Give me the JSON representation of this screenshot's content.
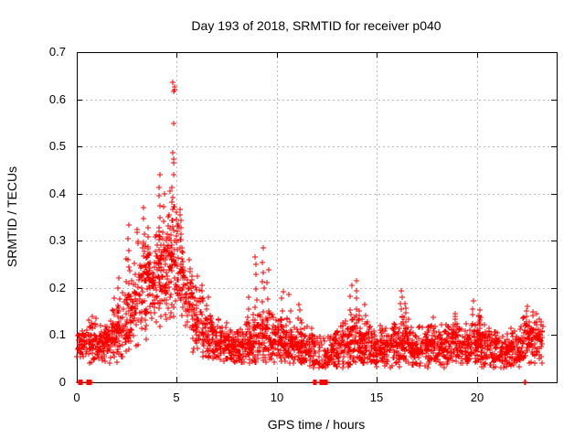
{
  "chart_data": {
    "type": "scatter",
    "title": "Day 193 of 2018, SRMTID for receiver p040",
    "xlabel": "GPS time / hours",
    "ylabel": "SRMTID / TECUs",
    "xlim": [
      0,
      24
    ],
    "ylim": [
      0,
      0.7
    ],
    "xticks": [
      0,
      5,
      10,
      15,
      20
    ],
    "xtick_labels": [
      "0",
      "5",
      "10",
      "15",
      "20"
    ],
    "yticks": [
      0,
      0.1,
      0.2,
      0.3,
      0.4,
      0.5,
      0.6,
      0.7
    ],
    "ytick_labels": [
      "0",
      "0.1",
      "0.2",
      "0.3",
      "0.4",
      "0.5",
      "0.6",
      "0.7"
    ],
    "grid": true,
    "legend": "none",
    "marker": {
      "shape": "plus-icon",
      "color": "#ff0000",
      "size": 7
    },
    "axis_color": "#000000",
    "grid_color": "#b8b8b8",
    "background_color": "#ffffff",
    "seed": 1234567,
    "band_bins": [
      [
        0.0,
        0.5,
        48,
        0.085,
        0.018,
        0.05,
        0.14
      ],
      [
        0.5,
        1.0,
        52,
        0.088,
        0.022,
        0.04,
        0.16
      ],
      [
        1.0,
        1.5,
        55,
        0.08,
        0.018,
        0.04,
        0.13
      ],
      [
        1.5,
        2.0,
        55,
        0.092,
        0.026,
        0.04,
        0.18
      ],
      [
        2.0,
        2.5,
        55,
        0.105,
        0.032,
        0.05,
        0.22
      ],
      [
        2.5,
        3.0,
        58,
        0.15,
        0.05,
        0.06,
        0.34
      ],
      [
        3.0,
        3.5,
        62,
        0.2,
        0.06,
        0.08,
        0.37
      ],
      [
        3.5,
        4.0,
        65,
        0.21,
        0.05,
        0.09,
        0.33
      ],
      [
        4.0,
        4.5,
        70,
        0.23,
        0.06,
        0.1,
        0.4
      ],
      [
        4.5,
        5.0,
        75,
        0.27,
        0.062,
        0.12,
        0.42
      ],
      [
        5.0,
        5.4,
        48,
        0.235,
        0.05,
        0.12,
        0.37
      ],
      [
        5.4,
        5.8,
        48,
        0.17,
        0.04,
        0.09,
        0.27
      ],
      [
        5.8,
        6.3,
        52,
        0.125,
        0.035,
        0.06,
        0.21
      ],
      [
        6.3,
        6.8,
        55,
        0.1,
        0.028,
        0.05,
        0.18
      ],
      [
        6.8,
        7.3,
        55,
        0.085,
        0.022,
        0.04,
        0.16
      ],
      [
        7.3,
        7.8,
        55,
        0.078,
        0.02,
        0.04,
        0.13
      ],
      [
        7.8,
        8.3,
        55,
        0.08,
        0.022,
        0.04,
        0.14
      ],
      [
        8.3,
        8.8,
        55,
        0.085,
        0.025,
        0.04,
        0.15
      ],
      [
        8.8,
        9.3,
        55,
        0.095,
        0.03,
        0.04,
        0.17
      ],
      [
        9.3,
        9.8,
        55,
        0.09,
        0.03,
        0.04,
        0.16
      ],
      [
        9.8,
        10.3,
        55,
        0.085,
        0.028,
        0.04,
        0.15
      ],
      [
        10.3,
        10.8,
        55,
        0.082,
        0.026,
        0.04,
        0.15
      ],
      [
        10.8,
        11.3,
        55,
        0.08,
        0.025,
        0.04,
        0.14
      ],
      [
        11.3,
        11.8,
        48,
        0.073,
        0.024,
        0.03,
        0.13
      ],
      [
        11.8,
        12.2,
        30,
        0.064,
        0.022,
        0.03,
        0.11
      ],
      [
        12.2,
        12.7,
        38,
        0.06,
        0.022,
        0.03,
        0.11
      ],
      [
        12.7,
        13.2,
        55,
        0.07,
        0.022,
        0.03,
        0.12
      ],
      [
        13.2,
        13.7,
        55,
        0.075,
        0.025,
        0.03,
        0.13
      ],
      [
        13.7,
        14.2,
        55,
        0.085,
        0.03,
        0.04,
        0.16
      ],
      [
        14.2,
        14.7,
        55,
        0.08,
        0.026,
        0.04,
        0.14
      ],
      [
        14.7,
        15.2,
        55,
        0.072,
        0.022,
        0.03,
        0.12
      ],
      [
        15.2,
        15.7,
        55,
        0.07,
        0.022,
        0.03,
        0.12
      ],
      [
        15.7,
        16.2,
        55,
        0.076,
        0.025,
        0.03,
        0.13
      ],
      [
        16.2,
        16.7,
        55,
        0.085,
        0.03,
        0.04,
        0.16
      ],
      [
        16.7,
        17.2,
        55,
        0.072,
        0.022,
        0.03,
        0.12
      ],
      [
        17.2,
        17.7,
        55,
        0.075,
        0.024,
        0.03,
        0.13
      ],
      [
        17.7,
        18.2,
        55,
        0.08,
        0.025,
        0.04,
        0.14
      ],
      [
        18.2,
        18.7,
        55,
        0.075,
        0.023,
        0.03,
        0.13
      ],
      [
        18.7,
        19.2,
        55,
        0.085,
        0.027,
        0.04,
        0.15
      ],
      [
        19.2,
        19.7,
        55,
        0.08,
        0.025,
        0.04,
        0.14
      ],
      [
        19.7,
        20.2,
        55,
        0.085,
        0.028,
        0.04,
        0.15
      ],
      [
        20.2,
        20.7,
        55,
        0.075,
        0.023,
        0.03,
        0.13
      ],
      [
        20.7,
        21.2,
        55,
        0.07,
        0.022,
        0.03,
        0.12
      ],
      [
        21.2,
        21.7,
        55,
        0.065,
        0.02,
        0.03,
        0.11
      ],
      [
        21.7,
        22.2,
        55,
        0.072,
        0.022,
        0.03,
        0.13
      ],
      [
        22.2,
        22.7,
        55,
        0.088,
        0.028,
        0.04,
        0.16
      ],
      [
        22.7,
        23.3,
        60,
        0.09,
        0.028,
        0.04,
        0.15
      ]
    ],
    "spike_columns": [
      [
        1.85,
        0.12,
        0.175,
        4
      ],
      [
        2.1,
        0.13,
        0.22,
        5
      ],
      [
        2.45,
        0.14,
        0.26,
        4
      ],
      [
        2.6,
        0.18,
        0.34,
        6
      ],
      [
        3.35,
        0.22,
        0.37,
        7
      ],
      [
        3.55,
        0.22,
        0.33,
        5
      ],
      [
        4.1,
        0.3,
        0.44,
        7
      ],
      [
        4.35,
        0.28,
        0.4,
        5
      ],
      [
        4.8,
        0.34,
        0.47,
        6
      ],
      [
        5.15,
        0.25,
        0.37,
        5
      ],
      [
        6.0,
        0.13,
        0.22,
        5
      ],
      [
        6.55,
        0.11,
        0.18,
        4
      ],
      [
        8.6,
        0.12,
        0.18,
        4
      ],
      [
        8.95,
        0.13,
        0.27,
        7
      ],
      [
        9.3,
        0.13,
        0.28,
        8
      ],
      [
        9.55,
        0.12,
        0.24,
        5
      ],
      [
        10.3,
        0.12,
        0.19,
        5
      ],
      [
        10.65,
        0.11,
        0.18,
        4
      ],
      [
        11.1,
        0.11,
        0.17,
        4
      ],
      [
        13.7,
        0.11,
        0.2,
        5
      ],
      [
        14.0,
        0.12,
        0.21,
        6
      ],
      [
        14.45,
        0.1,
        0.16,
        4
      ],
      [
        16.25,
        0.12,
        0.2,
        6
      ],
      [
        16.45,
        0.11,
        0.17,
        4
      ],
      [
        17.85,
        0.1,
        0.14,
        3
      ],
      [
        18.95,
        0.1,
        0.15,
        4
      ],
      [
        19.85,
        0.11,
        0.17,
        5
      ],
      [
        20.15,
        0.1,
        0.15,
        4
      ],
      [
        22.5,
        0.11,
        0.165,
        5
      ],
      [
        22.95,
        0.1,
        0.15,
        4
      ]
    ],
    "outliers": [
      [
        4.82,
        0.636
      ],
      [
        4.87,
        0.627
      ],
      [
        4.84,
        0.616
      ],
      [
        4.9,
        0.621
      ],
      [
        4.83,
        0.548
      ],
      [
        4.8,
        0.487
      ],
      [
        4.86,
        0.466
      ]
    ],
    "zero_runs": [
      [
        0.1,
        0.3,
        7
      ],
      [
        0.5,
        0.75,
        7
      ],
      [
        11.85,
        12.0,
        5
      ],
      [
        12.15,
        12.55,
        12
      ],
      [
        22.42,
        22.48,
        2
      ]
    ]
  }
}
